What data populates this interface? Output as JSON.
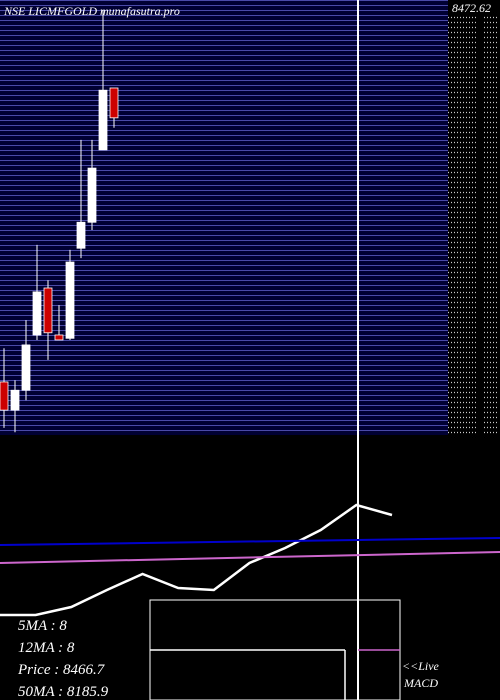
{
  "chart_data": {
    "type": "candlestick",
    "title": "NSE LICMFGOLD munafasutra.pro",
    "price_label": "8472.62",
    "ylim": [
      7700,
      8480
    ],
    "candles": {
      "open": [
        7796,
        7745,
        7781,
        7881,
        7966,
        7881,
        7875,
        8038,
        8085,
        8216,
        8328
      ],
      "high": [
        7857,
        7799,
        7908,
        8044,
        7980,
        7935,
        8035,
        8234,
        8234,
        8469,
        8328
      ],
      "low": [
        7713,
        7705,
        7763,
        7872,
        7836,
        7872,
        7872,
        8020,
        8071,
        8216,
        8256
      ],
      "close": [
        7745,
        7781,
        7863,
        7959,
        7885,
        7872,
        8013,
        8085,
        8183,
        8324,
        8274
      ],
      "up_color": "#ffffff",
      "down_color": "#cc0000"
    },
    "indicator": {
      "ylim": [
        0,
        265
      ],
      "series": [
        {
          "color": "#ffffff",
          "values": [
            85,
            85,
            93,
            110,
            126,
            112,
            110,
            137,
            152,
            170,
            195,
            185
          ]
        },
        {
          "color": "#0000cc",
          "values": [
            155,
            162
          ]
        },
        {
          "color": "#cc66cc",
          "values": [
            137,
            148
          ]
        }
      ]
    },
    "info": [
      "5MA : 8",
      "12MA : 8",
      "Price  : 8466.7",
      "50MA : 8185.9"
    ],
    "live": "<<Live",
    "macd": "MACD"
  }
}
